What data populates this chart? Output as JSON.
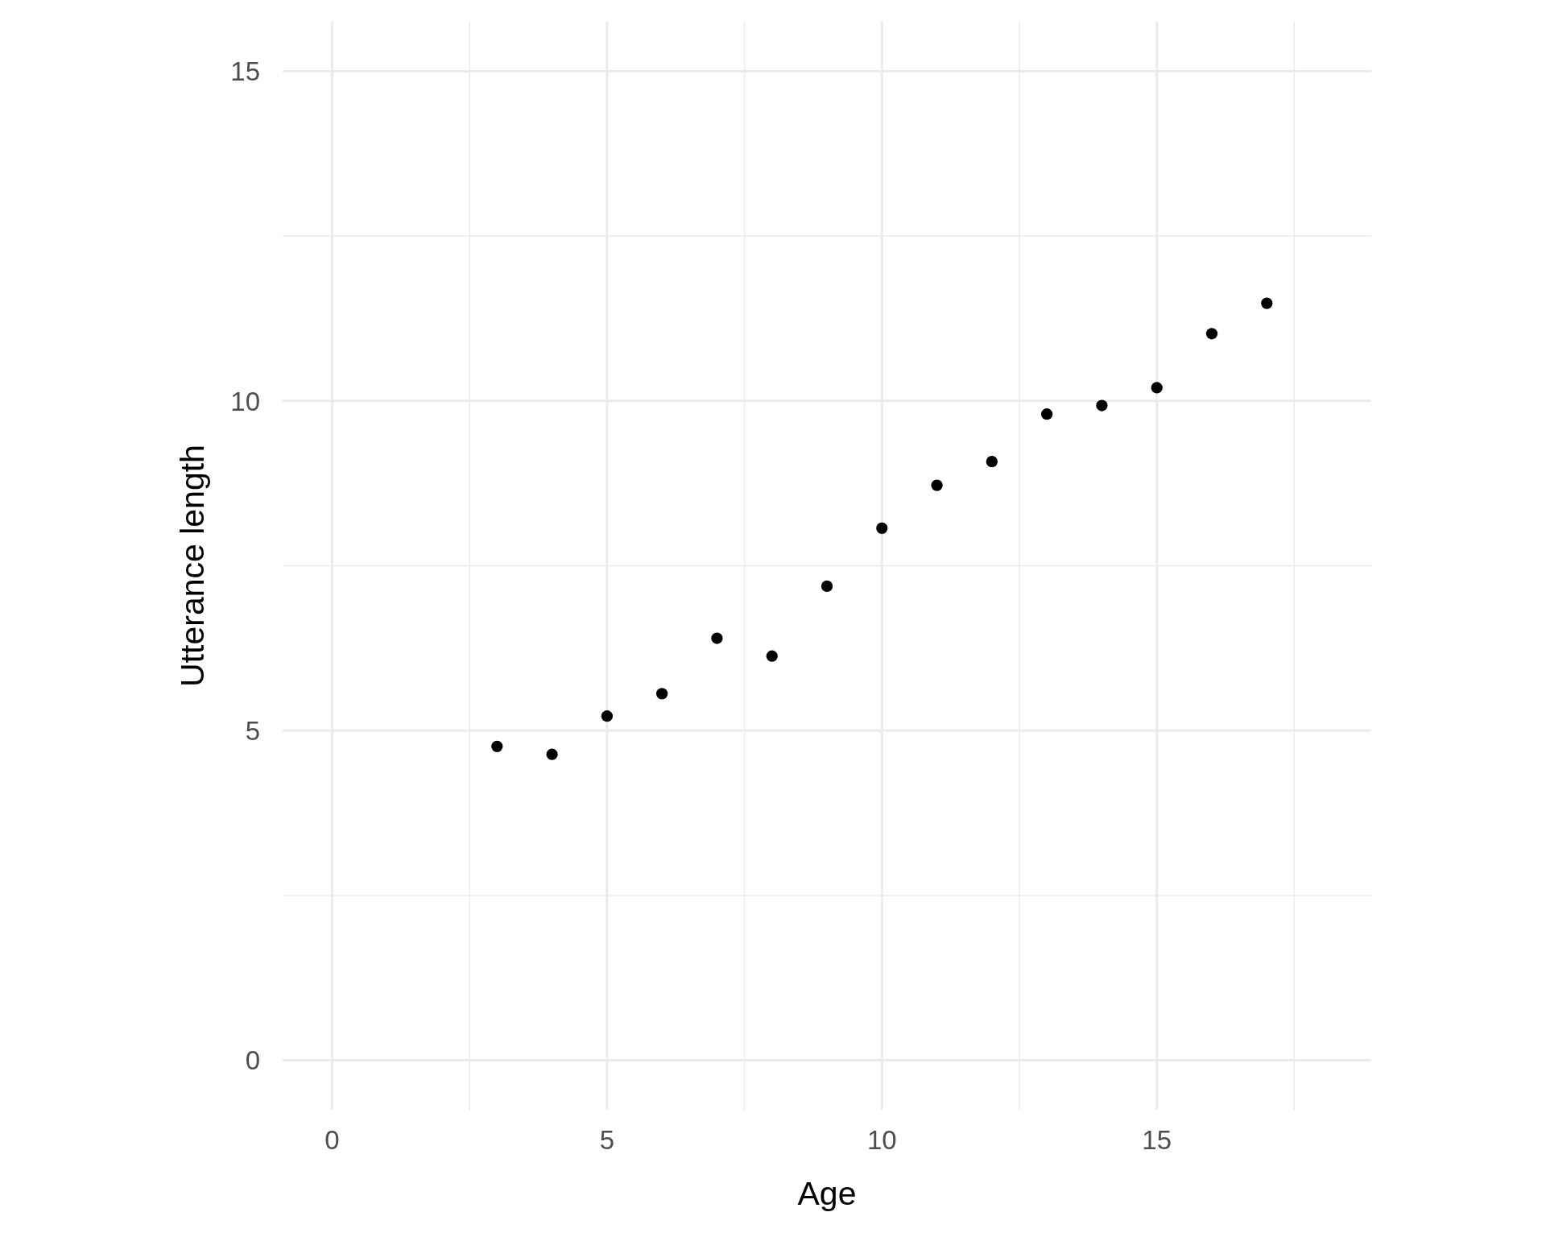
{
  "chart_data": {
    "type": "scatter",
    "xlabel": "Age",
    "ylabel": "Utterance length",
    "x": [
      3,
      4,
      5,
      6,
      7,
      8,
      9,
      10,
      11,
      12,
      13,
      14,
      15,
      16,
      17
    ],
    "series": [
      {
        "color": "#000000",
        "values": [
          4.76,
          4.64,
          5.22,
          5.56,
          6.4,
          6.13,
          7.19,
          8.07,
          8.72,
          9.08,
          9.8,
          9.93,
          10.2,
          11.02,
          11.48
        ]
      }
    ],
    "xlim": [
      -0.9,
      18.9
    ],
    "ylim": [
      -0.75,
      15.75
    ],
    "xticks": [
      0,
      {
        "value": 2.5,
        "label": null
      },
      5,
      {
        "value": 7.5,
        "label": null
      },
      10,
      {
        "value": 12.5,
        "label": null
      },
      15,
      {
        "value": 17.5,
        "label": null
      }
    ],
    "yticks": [
      0,
      {
        "value": 2.5,
        "label": null
      },
      5,
      {
        "value": 7.5,
        "label": null
      },
      10,
      {
        "value": 12.5,
        "label": null
      },
      15
    ],
    "grid": true,
    "marker": "circle"
  }
}
